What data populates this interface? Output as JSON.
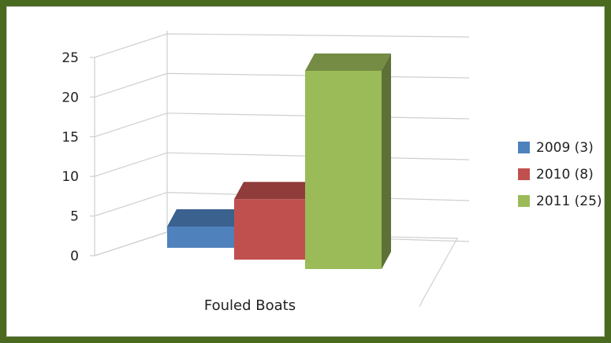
{
  "chart_data": {
    "type": "bar",
    "title": "",
    "xlabel": "",
    "ylabel": "",
    "categories": [
      "Fouled Boats"
    ],
    "series": [
      {
        "name": "2009 (3)",
        "values": [
          3
        ],
        "color": "#4f81bd"
      },
      {
        "name": "2010 (8)",
        "values": [
          8
        ],
        "color": "#c0504d"
      },
      {
        "name": "2011 (25)",
        "values": [
          25
        ],
        "color": "#9bbb59"
      }
    ],
    "ylim": [
      0,
      25
    ],
    "yticks": [
      "0",
      "5",
      "10",
      "15",
      "20",
      "25"
    ],
    "grid": true,
    "legend": "right",
    "style": "3d"
  }
}
